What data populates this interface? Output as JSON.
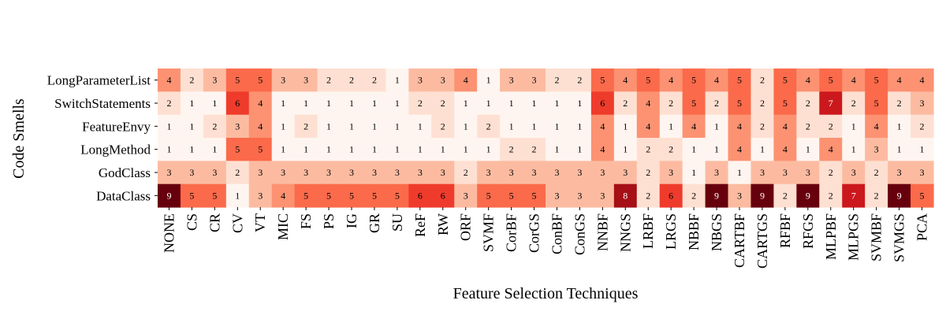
{
  "chart_data": {
    "type": "heatmap",
    "xlabel": "Feature Selection Techniques",
    "ylabel": "Code Smells",
    "colormap": "Reds",
    "color_range": [
      1,
      9
    ],
    "colorbar": false,
    "annotated": true,
    "x": [
      "NONE",
      "CS",
      "CR",
      "CV",
      "VT",
      "MIC",
      "FS",
      "PS",
      "IG",
      "GR",
      "SU",
      "ReF",
      "RW",
      "ORF",
      "SVMF",
      "CorBF",
      "CorGS",
      "ConBF",
      "ConGS",
      "NNBF",
      "NNGS",
      "LRBF",
      "LRGS",
      "NBBF",
      "NBGS",
      "CARTBF",
      "CARTGS",
      "RFBF",
      "RFGS",
      "MLPBF",
      "MLPGS",
      "SVMBF",
      "SVMGS",
      "PCA"
    ],
    "y": [
      "LongParameterList",
      "SwitchStatements",
      "FeatureEnvy",
      "LongMethod",
      "GodClass",
      "DataClass"
    ],
    "values": [
      [
        4,
        2,
        3,
        5,
        5,
        3,
        3,
        2,
        2,
        2,
        1,
        3,
        3,
        4,
        1,
        3,
        3,
        2,
        2,
        5,
        4,
        5,
        4,
        5,
        4,
        5,
        2,
        5,
        4,
        5,
        4,
        5,
        4,
        4
      ],
      [
        2,
        1,
        1,
        6,
        4,
        1,
        1,
        1,
        1,
        1,
        1,
        2,
        2,
        1,
        1,
        1,
        1,
        1,
        1,
        6,
        2,
        4,
        2,
        5,
        2,
        5,
        2,
        5,
        2,
        7,
        2,
        5,
        2,
        3
      ],
      [
        1,
        1,
        2,
        3,
        4,
        1,
        2,
        1,
        1,
        1,
        1,
        1,
        2,
        1,
        2,
        1,
        1,
        1,
        1,
        4,
        1,
        4,
        1,
        4,
        1,
        4,
        2,
        4,
        2,
        2,
        1,
        4,
        1,
        2
      ],
      [
        1,
        1,
        1,
        5,
        5,
        1,
        1,
        1,
        1,
        1,
        1,
        1,
        1,
        1,
        1,
        2,
        2,
        1,
        1,
        4,
        1,
        2,
        2,
        1,
        1,
        4,
        1,
        4,
        1,
        4,
        1,
        3,
        1,
        1
      ],
      [
        3,
        3,
        3,
        2,
        3,
        3,
        3,
        3,
        3,
        3,
        3,
        3,
        3,
        2,
        3,
        3,
        3,
        3,
        3,
        3,
        3,
        2,
        3,
        1,
        3,
        1,
        3,
        3,
        3,
        2,
        3,
        2,
        3,
        3
      ],
      [
        9,
        5,
        5,
        1,
        3,
        4,
        5,
        5,
        5,
        5,
        5,
        6,
        6,
        3,
        5,
        5,
        5,
        3,
        3,
        3,
        8,
        2,
        6,
        2,
        9,
        3,
        9,
        2,
        9,
        2,
        7,
        2,
        9,
        5
      ]
    ]
  }
}
